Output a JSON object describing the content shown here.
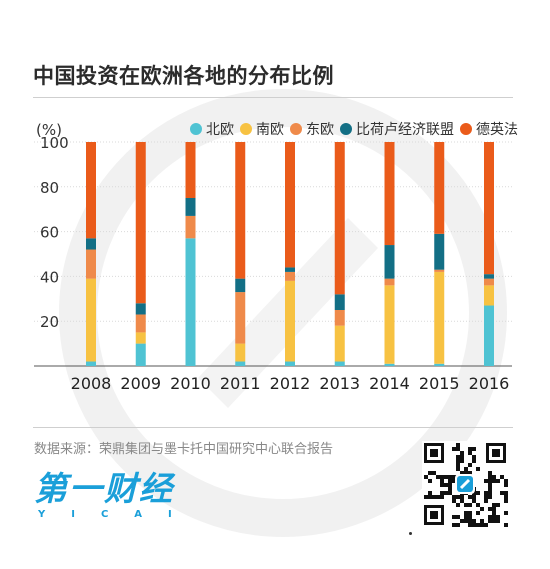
{
  "title": "中国投资在欧洲各地的分布比例",
  "unit_label": "(%)",
  "source": "数据来源：荣鼎集团与墨卡托中国研究中心联合报告",
  "logo": {
    "main": "第一财经",
    "sub": "YICAI"
  },
  "colors": {
    "北欧": "#4fc3d3",
    "南欧": "#f7c242",
    "东欧": "#ef8a4a",
    "比荷卢经济联盟": "#136f85",
    "德英法": "#ea5b1a"
  },
  "chart_data": {
    "type": "bar",
    "stacked": true,
    "title": "中国投资在欧洲各地的分布比例",
    "ylabel": "(%)",
    "ylim": [
      0,
      100
    ],
    "yticks": [
      20,
      40,
      60,
      80,
      100
    ],
    "legend_position": "top-right",
    "categories": [
      "2008",
      "2009",
      "2010",
      "2011",
      "2012",
      "2013",
      "2014",
      "2015",
      "2016"
    ],
    "series": [
      {
        "name": "北欧",
        "values": [
          2,
          10,
          57,
          2,
          2,
          2,
          1,
          1,
          27
        ]
      },
      {
        "name": "南欧",
        "values": [
          37,
          5,
          0,
          8,
          36,
          16,
          35,
          41,
          9
        ]
      },
      {
        "name": "东欧",
        "values": [
          13,
          8,
          10,
          23,
          4,
          7,
          3,
          1,
          3
        ]
      },
      {
        "name": "比荷卢经济联盟",
        "values": [
          5,
          5,
          8,
          6,
          2,
          7,
          15,
          16,
          2
        ]
      },
      {
        "name": "德英法",
        "values": [
          43,
          72,
          25,
          61,
          56,
          68,
          46,
          41,
          59
        ]
      }
    ]
  }
}
